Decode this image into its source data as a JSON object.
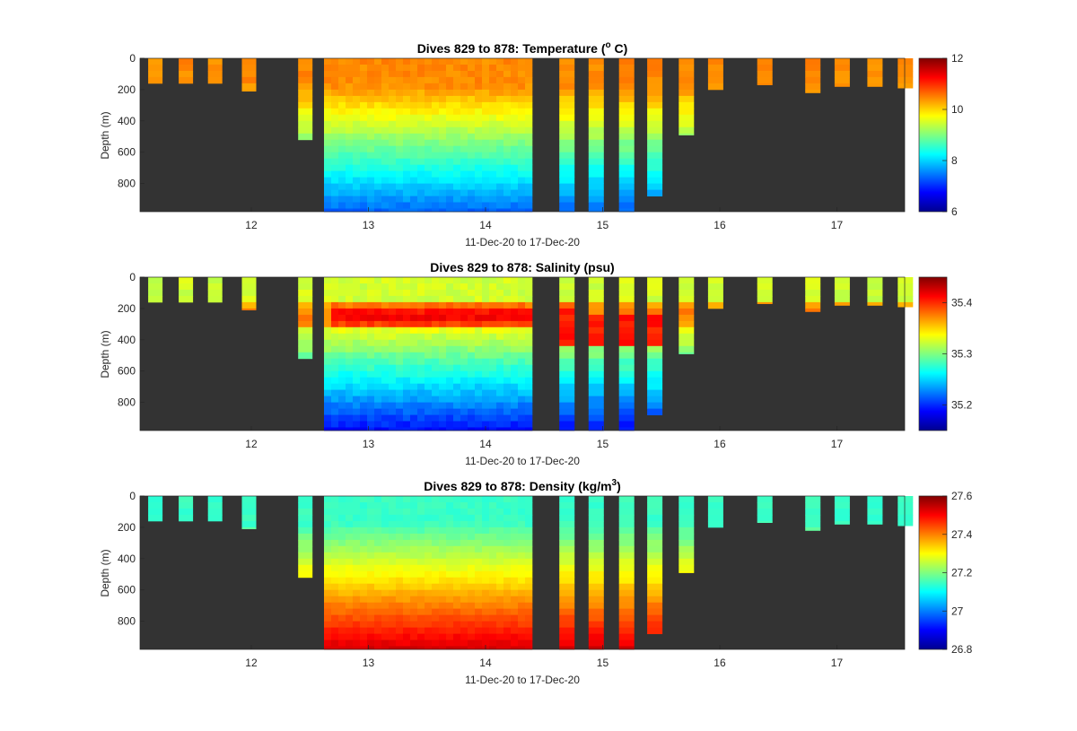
{
  "chart_data": [
    {
      "type": "heatmap",
      "title": "Dives 829 to 878: Temperature (",
      "title_sup": "o",
      "title_tail": " C)",
      "xlabel": "11-Dec-20 to 17-Dec-20",
      "ylabel": "Depth (m)",
      "xticks": [
        "12",
        "13",
        "14",
        "15",
        "16",
        "17"
      ],
      "yticks": [
        "0",
        "200",
        "400",
        "600",
        "800"
      ],
      "colorbar_ticks": [
        "6",
        "8",
        "10",
        "12"
      ],
      "clim": [
        6,
        12
      ],
      "colormap": "jet",
      "background": "#333333",
      "profile_max_depth_m": [
        160,
        160,
        160,
        210,
        520,
        980,
        980,
        980,
        980,
        980,
        980,
        980,
        980,
        980,
        980,
        980,
        980,
        980,
        980,
        980,
        980,
        980,
        980,
        980,
        980,
        980,
        980,
        980,
        980,
        980,
        980,
        980,
        980,
        980,
        980,
        980,
        980,
        880,
        490,
        200,
        170,
        220,
        180,
        180,
        190,
        310
      ]
    },
    {
      "type": "heatmap",
      "title": "Dives 829 to 878: Salinity (psu)",
      "xlabel": "11-Dec-20 to 17-Dec-20",
      "ylabel": "Depth (m)",
      "xticks": [
        "12",
        "13",
        "14",
        "15",
        "16",
        "17"
      ],
      "yticks": [
        "0",
        "200",
        "400",
        "600",
        "800"
      ],
      "colorbar_ticks": [
        "35.2",
        "35.3",
        "35.4"
      ],
      "clim": [
        35.15,
        35.45
      ],
      "colormap": "jet",
      "background": "#333333"
    },
    {
      "type": "heatmap",
      "title": "Dives 829 to 878: Density (kg/m",
      "title_sup": "3",
      "title_tail": ")",
      "xlabel": "11-Dec-20 to 17-Dec-20",
      "ylabel": "Depth (m)",
      "xticks": [
        "12",
        "13",
        "14",
        "15",
        "16",
        "17"
      ],
      "yticks": [
        "0",
        "200",
        "400",
        "600",
        "800"
      ],
      "colorbar_ticks": [
        "26.8",
        "27",
        "27.2",
        "27.4",
        "27.6"
      ],
      "clim": [
        26.8,
        27.6
      ],
      "colormap": "jet",
      "background": "#333333"
    }
  ]
}
